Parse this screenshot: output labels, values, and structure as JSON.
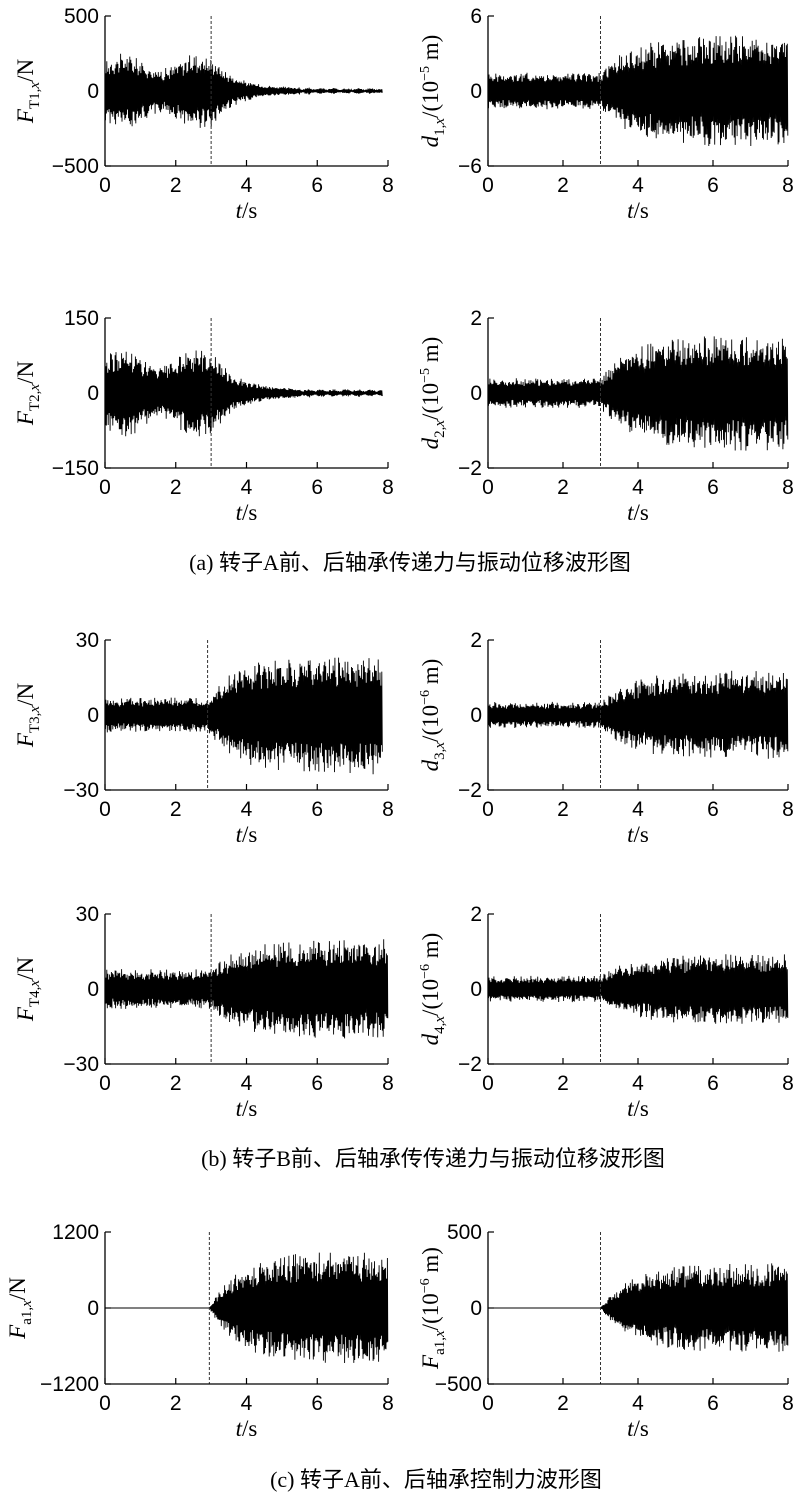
{
  "chart_data": [
    {
      "id": "p1",
      "type": "line",
      "xlabel": "t/s",
      "xticks": [
        "0",
        "2",
        "4",
        "6",
        "8"
      ],
      "xlim": [
        0,
        8
      ],
      "ylabel": {
        "var": "F",
        "sub": "T1,",
        "subvar": "x",
        "unit": "/N"
      },
      "yticks": [
        "500",
        "0",
        "−500"
      ],
      "ylim": [
        -500,
        500
      ],
      "marker_x": 3,
      "envelope": {
        "before": 250,
        "after": 20,
        "decay": "fast",
        "tail_beats": true
      },
      "series": [
        {
          "x_range": [
            0,
            7.85
          ],
          "desc": "vibration waveform"
        }
      ]
    },
    {
      "id": "p2",
      "type": "line",
      "xlabel": "t/s",
      "xticks": [
        "0",
        "2",
        "4",
        "6",
        "8"
      ],
      "xlim": [
        0,
        8
      ],
      "ylabel": {
        "var": "d",
        "sub": "1,",
        "subvar": "x",
        "unit": "/(10",
        "exp": "−5",
        "unit2": " m)"
      },
      "yticks": [
        "6",
        "0",
        "−6"
      ],
      "ylim": [
        -6,
        6
      ],
      "marker_x": 3,
      "envelope": {
        "before": 1.5,
        "after": 4.5,
        "decay": "grow"
      },
      "series": [
        {
          "x_range": [
            0,
            8
          ]
        }
      ]
    },
    {
      "id": "p3",
      "type": "line",
      "xlabel": "t/s",
      "xticks": [
        "0",
        "2",
        "4",
        "6",
        "8"
      ],
      "xlim": [
        0,
        8
      ],
      "ylabel": {
        "var": "F",
        "sub": "T2,",
        "subvar": "x",
        "unit": "/N"
      },
      "yticks": [
        "150",
        "0",
        "−150"
      ],
      "ylim": [
        -150,
        150
      ],
      "marker_x": 3,
      "envelope": {
        "before": 90,
        "after": 8,
        "decay": "fast",
        "tail_beats": true
      },
      "series": [
        {
          "x_range": [
            0,
            7.85
          ]
        }
      ]
    },
    {
      "id": "p4",
      "type": "line",
      "xlabel": "t/s",
      "xticks": [
        "0",
        "2",
        "4",
        "6",
        "8"
      ],
      "xlim": [
        0,
        8
      ],
      "ylabel": {
        "var": "d",
        "sub": "2,",
        "subvar": "x",
        "unit": "/(10",
        "exp": "−5",
        "unit2": " m)"
      },
      "yticks": [
        "2",
        "0",
        "−2"
      ],
      "ylim": [
        -2,
        2
      ],
      "marker_x": 3,
      "envelope": {
        "before": 0.4,
        "after": 1.55,
        "decay": "grow"
      },
      "series": [
        {
          "x_range": [
            0,
            8
          ]
        }
      ]
    },
    {
      "id": "p5",
      "type": "line",
      "xlabel": "t/s",
      "xticks": [
        "0",
        "2",
        "4",
        "6",
        "8"
      ],
      "xlim": [
        0,
        8
      ],
      "ylabel": {
        "var": "F",
        "sub": "T3,",
        "subvar": "x",
        "unit": "/N"
      },
      "yticks": [
        "30",
        "0",
        "−30"
      ],
      "ylim": [
        -30,
        30
      ],
      "marker_x": 2.9,
      "envelope": {
        "before": 7,
        "after": 24,
        "decay": "grow"
      },
      "series": [
        {
          "x_range": [
            0,
            7.85
          ]
        }
      ]
    },
    {
      "id": "p6",
      "type": "line",
      "xlabel": "t/s",
      "xticks": [
        "0",
        "2",
        "4",
        "6",
        "8"
      ],
      "xlim": [
        0,
        8
      ],
      "ylabel": {
        "var": "d",
        "sub": "3,",
        "subvar": "x",
        "unit": "/(10",
        "exp": "−6",
        "unit2": " m)"
      },
      "yticks": [
        "2",
        "0",
        "−2"
      ],
      "ylim": [
        -2,
        2
      ],
      "marker_x": 3,
      "envelope": {
        "before": 0.35,
        "after": 1.2,
        "decay": "grow"
      },
      "series": [
        {
          "x_range": [
            0,
            8
          ]
        }
      ]
    },
    {
      "id": "p7",
      "type": "line",
      "xlabel": "t/s",
      "xticks": [
        "0",
        "2",
        "4",
        "6",
        "8"
      ],
      "xlim": [
        0,
        8
      ],
      "ylabel": {
        "var": "F",
        "sub": "T4,",
        "subvar": "x",
        "unit": "/N"
      },
      "yticks": [
        "30",
        "0",
        "−30"
      ],
      "ylim": [
        -30,
        30
      ],
      "marker_x": 3,
      "envelope": {
        "before": 8,
        "after": 20,
        "decay": "grow"
      },
      "series": [
        {
          "x_range": [
            0,
            8
          ]
        }
      ]
    },
    {
      "id": "p8",
      "type": "line",
      "xlabel": "t/s",
      "xticks": [
        "0",
        "2",
        "4",
        "6",
        "8"
      ],
      "xlim": [
        0,
        8
      ],
      "ylabel": {
        "var": "d",
        "sub": "4,",
        "subvar": "x",
        "unit": "/(10",
        "exp": "−6",
        "unit2": " m)"
      },
      "yticks": [
        "2",
        "0",
        "−2"
      ],
      "ylim": [
        -2,
        2
      ],
      "marker_x": 3,
      "envelope": {
        "before": 0.35,
        "after": 0.95,
        "decay": "grow"
      },
      "series": [
        {
          "x_range": [
            0,
            8
          ]
        }
      ]
    },
    {
      "id": "p9",
      "type": "line",
      "xlabel": "t/s",
      "xticks": [
        "0",
        "2",
        "4",
        "6",
        "8"
      ],
      "xlim": [
        0,
        8
      ],
      "ylabel": {
        "var": "F",
        "sub": "a1,",
        "subvar": "x",
        "unit": "/N"
      },
      "yticks": [
        "1200",
        "0",
        "−1200"
      ],
      "ylim": [
        -1200,
        1200
      ],
      "marker_x": 2.95,
      "envelope": {
        "before": 0,
        "after": 900,
        "decay": "grow"
      },
      "series": [
        {
          "x_range": [
            0,
            8
          ]
        }
      ]
    },
    {
      "id": "p10",
      "type": "line",
      "xlabel": "t/s",
      "xticks": [
        "0",
        "2",
        "4",
        "6",
        "8"
      ],
      "xlim": [
        0,
        8
      ],
      "ylabel": {
        "var": "F",
        "sub": "a1,",
        "subvar": "x",
        "unit": "/(10",
        "exp": "−6",
        "unit2": " m)"
      },
      "yticks": [
        "500",
        "0",
        "−500"
      ],
      "ylim": [
        -500,
        500
      ],
      "marker_x": 3,
      "envelope": {
        "before": 0,
        "after": 300,
        "decay": "grow"
      },
      "series": [
        {
          "x_range": [
            0,
            8
          ]
        }
      ]
    }
  ],
  "captions": {
    "a": "(a) 转子A前、后轴承传递力与振动位移波形图",
    "b": "(b) 转子B前、后轴承传传递力与振动位移波形图",
    "c": "(c) 转子A前、后轴承控制力波形图"
  },
  "colors": {
    "waveform": "#000000",
    "axis": "#000000",
    "marker": "#333333"
  }
}
